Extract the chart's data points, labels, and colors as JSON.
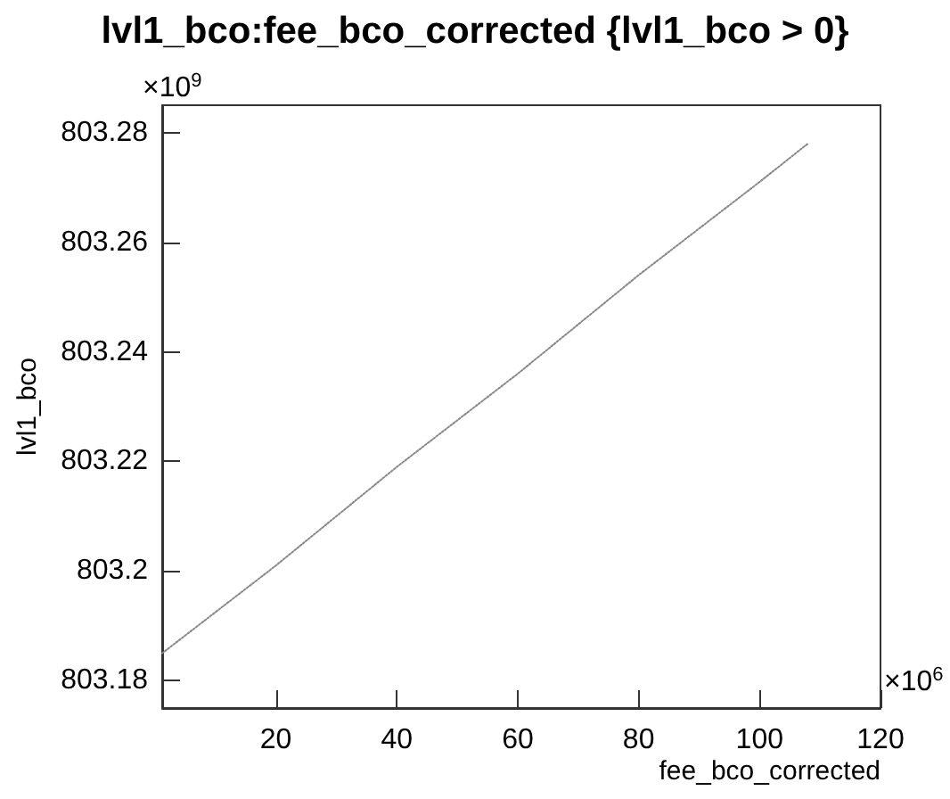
{
  "chart_data": {
    "type": "line",
    "title": "lvl1_bco:fee_bco_corrected {lvl1_bco > 0}",
    "xlabel": "fee_bco_corrected",
    "ylabel": "lvl1_bco",
    "annotations": [
      "×10$^{9}$",
      "×10$^{6}$"
    ],
    "x": [
      1.2,
      20,
      40,
      60,
      80,
      100,
      108
    ],
    "series": [
      {
        "color": "#888888",
        "values": [
          803.185,
          803.201,
          803.219,
          803.236,
          803.254,
          803.271,
          803.278
        ]
      }
    ],
    "xlim": [
      1.2,
      120
    ],
    "xticks": [
      20,
      40,
      60,
      80,
      100,
      120
    ],
    "ylim": [
      803.175,
      803.285
    ],
    "yticks": [
      803.18,
      803.2,
      803.22,
      803.24,
      803.26,
      803.28
    ],
    "grid": false,
    "marker": "none",
    "line_style": "dotted"
  }
}
